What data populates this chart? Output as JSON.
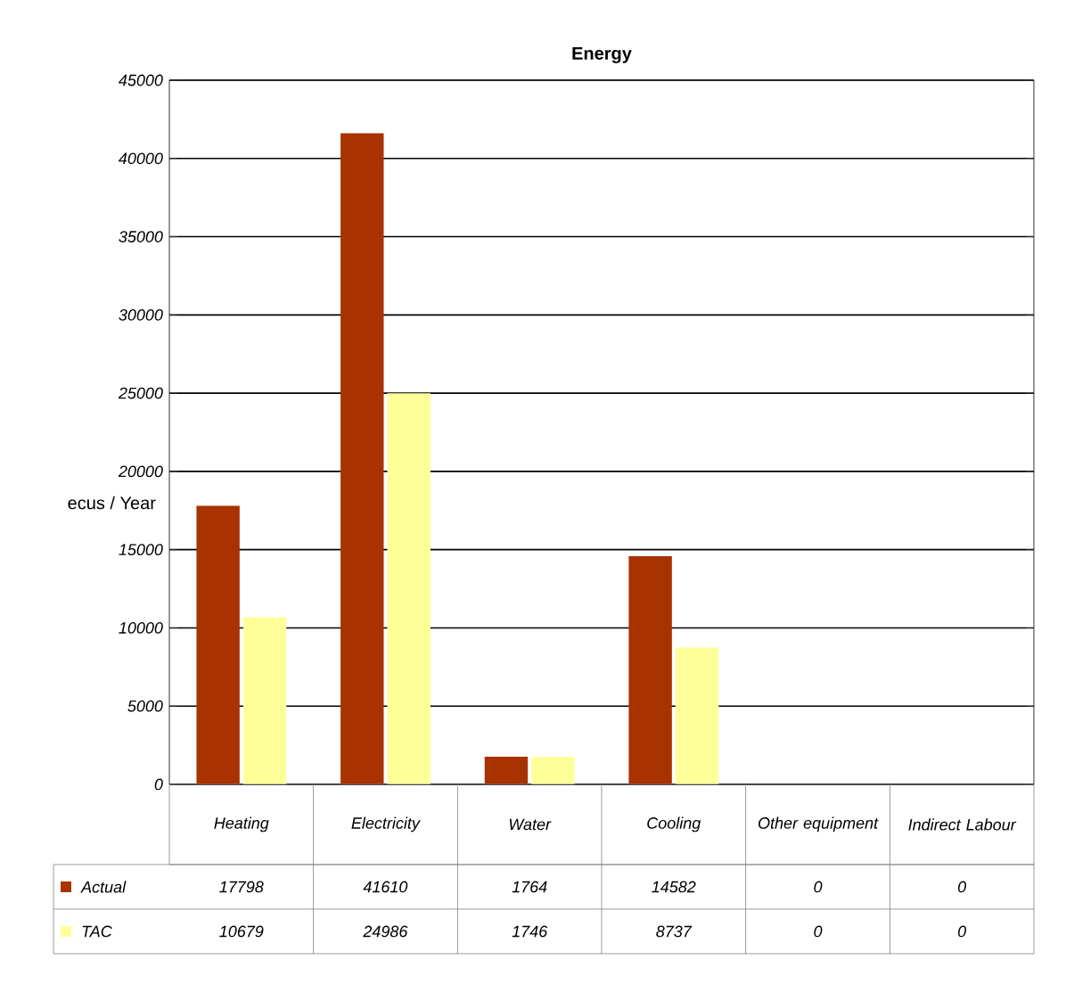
{
  "chart_data": {
    "type": "bar",
    "title": "Energy",
    "ylabel": "ecus / Year",
    "categories": [
      "Heating",
      "Electricity",
      "Water",
      "Cooling",
      "Other equipment",
      "Indirect Labour"
    ],
    "series": [
      {
        "name": "Actual",
        "color": "#a83200",
        "values": [
          17798,
          41610,
          1764,
          14582,
          0,
          0
        ]
      },
      {
        "name": "TAC",
        "color": "#ffff99",
        "values": [
          10679,
          24986,
          1746,
          8737,
          0,
          0
        ]
      }
    ],
    "ylim": [
      0,
      45000
    ],
    "yticks": [
      0,
      5000,
      10000,
      15000,
      20000,
      25000,
      30000,
      35000,
      40000,
      45000
    ],
    "grid": "y",
    "legend": "bottom",
    "data_labels": true
  }
}
